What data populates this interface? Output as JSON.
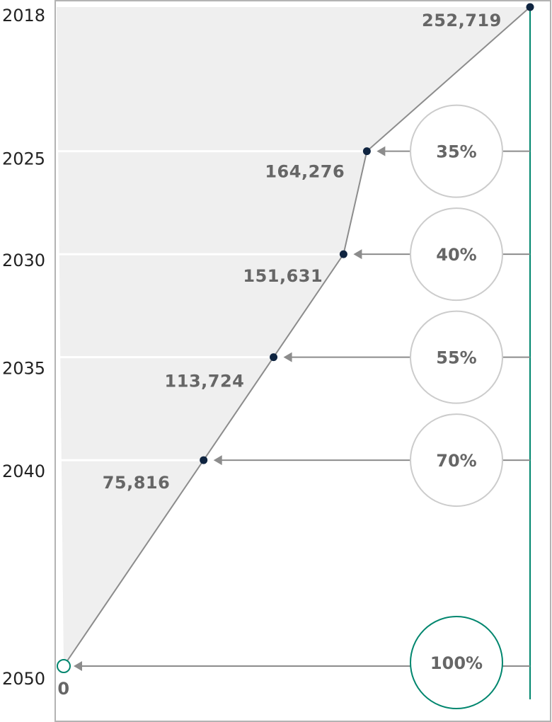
{
  "chart_data": {
    "type": "line",
    "x": [
      2018,
      2025,
      2030,
      2035,
      2040,
      2050
    ],
    "year_labels": [
      "2018",
      "2025",
      "2030",
      "2035",
      "2040",
      "2050"
    ],
    "values": [
      252719,
      164276,
      151631,
      113724,
      75816,
      0
    ],
    "value_labels": [
      "252,719",
      "164,276",
      "151,631",
      "113,724",
      "75,816",
      "0"
    ],
    "reductions": [
      null,
      "35%",
      "40%",
      "55%",
      "70%",
      "100%"
    ],
    "xlim": [
      0,
      252719
    ],
    "title": "",
    "xlabel": "",
    "ylabel": ""
  },
  "colors": {
    "point": "#0f2440",
    "line": "#8c8c8c",
    "fill": "#efefef",
    "accent": "#00866e",
    "circle_border": "#cccccc",
    "label": "#666666"
  }
}
